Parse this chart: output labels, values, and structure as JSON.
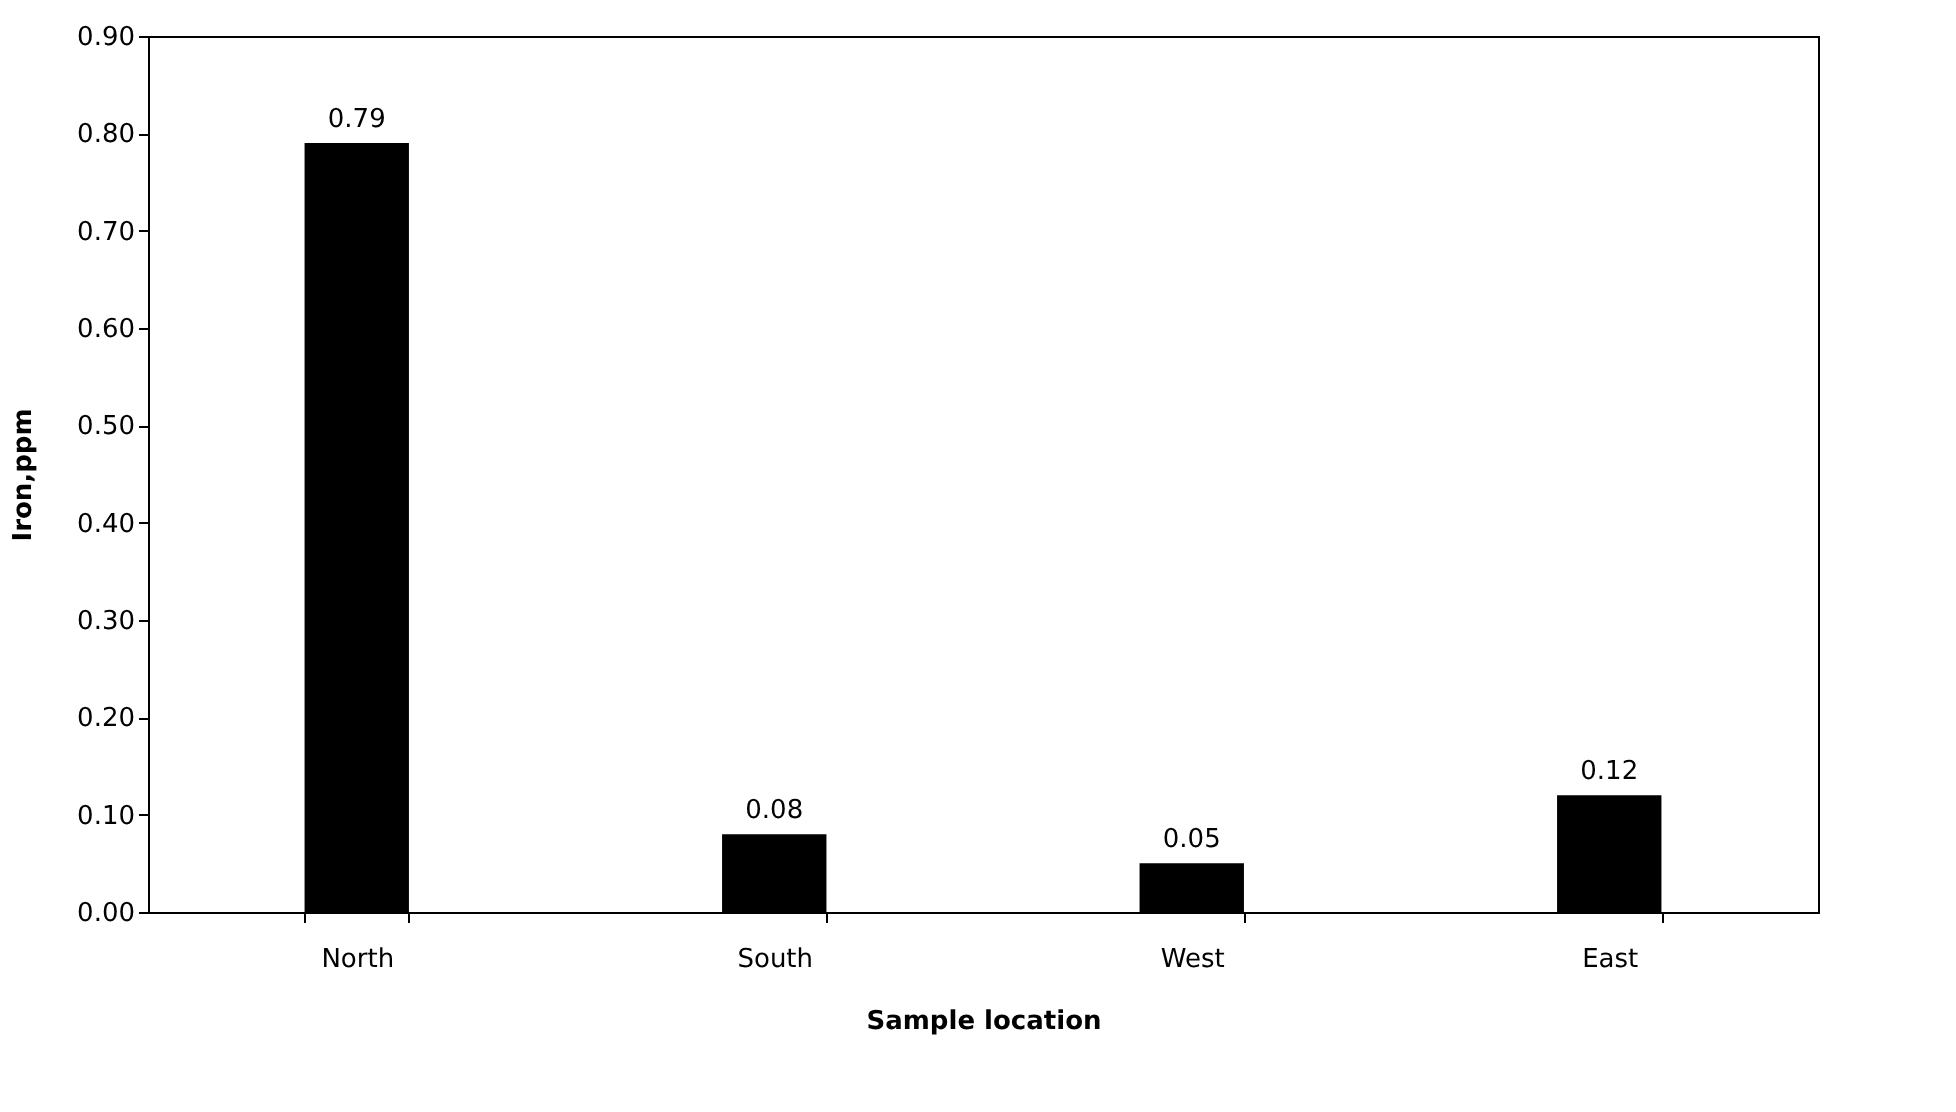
{
  "chart_data": {
    "type": "bar",
    "xlabel": "Sample location",
    "ylabel": "Iron,ppm",
    "categories": [
      "North",
      "South",
      "West",
      "East"
    ],
    "values": [
      0.79,
      0.08,
      0.05,
      0.12
    ],
    "color": "#000000",
    "ylim": [
      0,
      0.9
    ],
    "yticks": [
      {
        "value": 0,
        "label": "0.00"
      },
      {
        "value": 0.1,
        "label": "0.10"
      },
      {
        "value": 0.2,
        "label": "0.20"
      },
      {
        "value": 0.3,
        "label": "0.30"
      },
      {
        "value": 0.4,
        "label": "0.40"
      },
      {
        "value": 0.5,
        "label": "0.50"
      },
      {
        "value": 0.6,
        "label": "0.60"
      },
      {
        "value": 0.7,
        "label": "0.70"
      },
      {
        "value": 0.8,
        "label": "0.80"
      },
      {
        "value": 0.9,
        "label": "0.90"
      }
    ],
    "data_labels": true,
    "grid": false
  }
}
